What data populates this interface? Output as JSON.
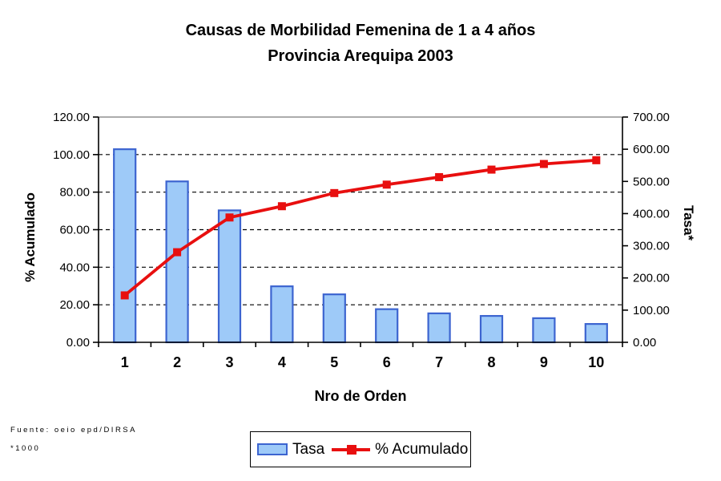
{
  "title": {
    "line1": "Causas de Morbilidad Femenina de 1 a 4 años",
    "line2": "Provincia Arequipa 2003"
  },
  "footnotes": {
    "source": "Fuente: oeio epd/DIRSA",
    "scale_note": "*1000"
  },
  "legend": {
    "tasa_label": "Tasa",
    "acumulado_label": "% Acumulado"
  },
  "chart_data": {
    "type": "bar",
    "subtype": "pareto (bar + cumulative line)",
    "title": "Causas de Morbilidad Femenina de 1 a 4 años — Provincia Arequipa 2003",
    "categories": [
      "1",
      "2",
      "3",
      "4",
      "5",
      "6",
      "7",
      "8",
      "9",
      "10"
    ],
    "xlabel": "Nro de Orden",
    "series": [
      {
        "name": "Tasa",
        "type": "bar",
        "axis": "right",
        "values": [
          600,
          500,
          410,
          174,
          149,
          103,
          90,
          82,
          75,
          57
        ]
      },
      {
        "name": "% Acumulado",
        "type": "line",
        "axis": "left",
        "values": [
          25,
          48,
          66.5,
          72.5,
          79.5,
          84,
          88,
          92,
          95,
          97
        ]
      }
    ],
    "left_axis": {
      "label": "% Acumulado",
      "min": 0,
      "max": 120,
      "step": 20,
      "ticks": [
        "0.00",
        "20.00",
        "40.00",
        "60.00",
        "80.00",
        "100.00",
        "120.00"
      ]
    },
    "right_axis": {
      "label": "Tasa*",
      "min": 0,
      "max": 700,
      "step": 100,
      "ticks": [
        "0.00",
        "100.00",
        "200.00",
        "300.00",
        "400.00",
        "500.00",
        "600.00",
        "700.00"
      ]
    },
    "grid": "horizontal dashed",
    "legend_position": "bottom center",
    "colors": {
      "bar_fill": "#9ECAF8",
      "bar_border": "#3C64D0",
      "line": "#E80F0F",
      "grid": "#000000",
      "plot_border_top": "#909090",
      "axis": "#000000"
    }
  }
}
